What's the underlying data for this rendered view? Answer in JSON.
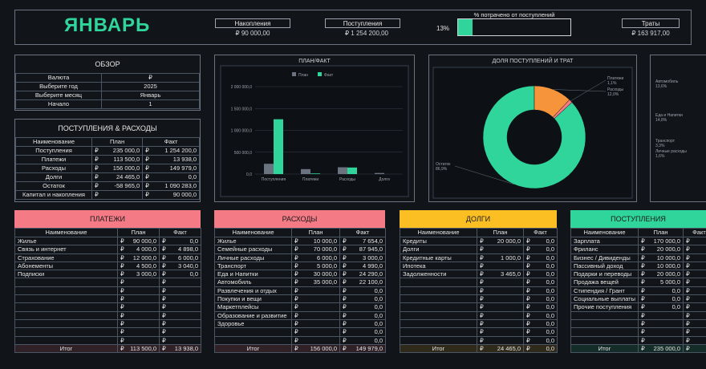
{
  "header": {
    "title": "ЯНВАРЬ",
    "savings_label": "Накопления",
    "savings_value": "₽ 90 000,00",
    "income_label": "Поступления",
    "income_value": "₽ 1 254 200,00",
    "spent_pct_label": "% потрачено от поступлений",
    "spent_pct_value": "13%",
    "spent_pct_fraction": 0.13,
    "expenses_label": "Траты",
    "expenses_value": "₽ 163 917,00"
  },
  "overview": {
    "title": "ОБЗОР",
    "rows": [
      {
        "label": "Валюта",
        "value": "₽"
      },
      {
        "label": "Выберите год",
        "value": "2025"
      },
      {
        "label": "Выберите месяц",
        "value": "Январь"
      },
      {
        "label": "Начало",
        "value": "1"
      }
    ]
  },
  "summary": {
    "title": "ПОСТУПЛЕНИЯ & РАСХОДЫ",
    "headers": [
      "Наименование",
      "План",
      "Факт"
    ],
    "rows": [
      {
        "name": "Поступления",
        "plan": "235 000,0",
        "fact": "1 254 200,0"
      },
      {
        "name": "Платежи",
        "plan": "113 500,0",
        "fact": "13 938,0"
      },
      {
        "name": "Расходы",
        "plan": "156 000,0",
        "fact": "149 979,0"
      },
      {
        "name": "Долги",
        "plan": "24 465,0",
        "fact": "0,0"
      },
      {
        "name": "Остаток",
        "plan": "-58 965,0",
        "fact": "1 090 283,0"
      },
      {
        "name": "Капитал и накопления",
        "plan": "",
        "fact": "90 000,0"
      }
    ],
    "currency": "₽"
  },
  "chart_data": [
    {
      "type": "bar",
      "title": "ПЛАН/ФАКТ",
      "categories": [
        "Поступления",
        "Платежи",
        "Расходы",
        "Долги"
      ],
      "series": [
        {
          "name": "План",
          "values": [
            235000,
            113500,
            156000,
            24465
          ],
          "color": "#6b7280"
        },
        {
          "name": "Факт",
          "values": [
            1254200,
            13938,
            149979,
            0
          ],
          "color": "#2fd59b"
        }
      ],
      "yticks": [
        "0,0",
        "500 000,0",
        "1 000 000,0",
        "1 500 000,0",
        "2 000 000,0"
      ],
      "ylim": [
        0,
        2000000
      ],
      "legend": "top"
    },
    {
      "type": "pie",
      "title": "ДОЛЯ ПОСТУПЛЕНИЙ И ТРАТ",
      "slices": [
        {
          "name": "Остаток",
          "value": 86.9,
          "label": "86,9%",
          "color": "#2fd59b"
        },
        {
          "name": "Расходы",
          "value": 12.0,
          "label": "12,0%",
          "color": "#f5943a"
        },
        {
          "name": "Платежи",
          "value": 1.1,
          "label": "1,1%",
          "color": "#f47a86"
        }
      ]
    }
  ],
  "right_partial": {
    "labels": [
      {
        "name": "Автомобиль",
        "pct": "13,6%"
      },
      {
        "name": "Еда и Напитки",
        "pct": "14,8%"
      },
      {
        "name": "Транспорт",
        "pct": "3,3%"
      },
      {
        "name": "Личные расходы",
        "pct": "1,6%"
      }
    ]
  },
  "payments": {
    "title": "ПЛАТЕЖИ",
    "color": "#f47a86",
    "headers": [
      "Наименование",
      "План",
      "Факт"
    ],
    "rows": [
      {
        "name": "Жилье",
        "plan": "90 000,0",
        "fact": "0,0"
      },
      {
        "name": "Связь и интернет",
        "plan": "4 000,0",
        "fact": "4 898,0"
      },
      {
        "name": "Страхование",
        "plan": "12 000,0",
        "fact": "6 000,0"
      },
      {
        "name": "Абонементы",
        "plan": "4 500,0",
        "fact": "3 040,0"
      },
      {
        "name": "Подписки",
        "plan": "3 000,0",
        "fact": "0,0"
      },
      {
        "name": "",
        "plan": "",
        "fact": ""
      },
      {
        "name": "",
        "plan": "",
        "fact": ""
      },
      {
        "name": "",
        "plan": "",
        "fact": ""
      },
      {
        "name": "",
        "plan": "",
        "fact": ""
      },
      {
        "name": "",
        "plan": "",
        "fact": ""
      },
      {
        "name": "",
        "plan": "",
        "fact": ""
      },
      {
        "name": "",
        "plan": "",
        "fact": ""
      },
      {
        "name": "",
        "plan": "",
        "fact": ""
      }
    ],
    "total": {
      "name": "Итог",
      "plan": "113 500,0",
      "fact": "13 938,0"
    }
  },
  "expenses": {
    "title": "РАСХОДЫ",
    "color": "#f47a86",
    "headers": [
      "Наименование",
      "План",
      "Факт"
    ],
    "rows": [
      {
        "name": "Жилье",
        "plan": "10 000,0",
        "fact": "7 654,0"
      },
      {
        "name": "Семейные расходы",
        "plan": "70 000,0",
        "fact": "87 945,0"
      },
      {
        "name": "Личные расходы",
        "plan": "6 000,0",
        "fact": "3 000,0"
      },
      {
        "name": "Транспорт",
        "plan": "5 000,0",
        "fact": "4 990,0"
      },
      {
        "name": "Еда и Напитки",
        "plan": "30 000,0",
        "fact": "24 290,0"
      },
      {
        "name": "Автомобиль",
        "plan": "35 000,0",
        "fact": "22 100,0"
      },
      {
        "name": "Развлечения и отдых",
        "plan": "",
        "fact": "0,0"
      },
      {
        "name": "Покупки и вещи",
        "plan": "",
        "fact": "0,0"
      },
      {
        "name": "Маркетплейсы",
        "plan": "",
        "fact": "0,0"
      },
      {
        "name": "Образование и развитие",
        "plan": "",
        "fact": "0,0"
      },
      {
        "name": "Здоровье",
        "plan": "",
        "fact": "0,0"
      },
      {
        "name": "",
        "plan": "",
        "fact": "0,0"
      },
      {
        "name": "",
        "plan": "",
        "fact": "0,0"
      }
    ],
    "total": {
      "name": "Итог",
      "plan": "156 000,0",
      "fact": "149 979,0"
    }
  },
  "debts": {
    "title": "ДОЛГИ",
    "color": "#fbbf24",
    "headers": [
      "Наименование",
      "План",
      "Факт"
    ],
    "rows": [
      {
        "name": "Кредиты",
        "plan": "20 000,0",
        "fact": "0,0"
      },
      {
        "name": "Долги",
        "plan": "",
        "fact": "0,0"
      },
      {
        "name": "Кредитные карты",
        "plan": "1 000,0",
        "fact": "0,0"
      },
      {
        "name": "Ипотека",
        "plan": "",
        "fact": "0,0"
      },
      {
        "name": "Задолженности",
        "plan": "3 465,0",
        "fact": "0,0"
      },
      {
        "name": "",
        "plan": "",
        "fact": "0,0"
      },
      {
        "name": "",
        "plan": "",
        "fact": "0,0"
      },
      {
        "name": "",
        "plan": "",
        "fact": "0,0"
      },
      {
        "name": "",
        "plan": "",
        "fact": "0,0"
      },
      {
        "name": "",
        "plan": "",
        "fact": "0,0"
      },
      {
        "name": "",
        "plan": "",
        "fact": "0,0"
      },
      {
        "name": "",
        "plan": "",
        "fact": "0,0"
      },
      {
        "name": "",
        "plan": "",
        "fact": "0,0"
      }
    ],
    "total": {
      "name": "Итог",
      "plan": "24 465,0",
      "fact": "0,0"
    }
  },
  "incomes": {
    "title": "ПОСТУПЛЕНИЯ",
    "color": "#2fd59b",
    "headers": [
      "Наименование",
      "План",
      "Факт"
    ],
    "rows": [
      {
        "name": "Зарплата",
        "plan": "170 000,0",
        "fact": ""
      },
      {
        "name": "Фриланс",
        "plan": "20 000,0",
        "fact": ""
      },
      {
        "name": "Бизнес / Дивиденды",
        "plan": "10 000,0",
        "fact": ""
      },
      {
        "name": "Пассивный доход",
        "plan": "10 000,0",
        "fact": ""
      },
      {
        "name": "Подарки и переводы",
        "plan": "20 000,0",
        "fact": ""
      },
      {
        "name": "Продажа вещей",
        "plan": "5 000,0",
        "fact": ""
      },
      {
        "name": "Стипендия / Грант",
        "plan": "0,0",
        "fact": ""
      },
      {
        "name": "Социальные выплаты",
        "plan": "0,0",
        "fact": ""
      },
      {
        "name": "Прочие поступления",
        "plan": "0,0",
        "fact": ""
      },
      {
        "name": "",
        "plan": "",
        "fact": ""
      },
      {
        "name": "",
        "plan": "",
        "fact": ""
      },
      {
        "name": "",
        "plan": "",
        "fact": ""
      },
      {
        "name": "",
        "plan": "",
        "fact": ""
      }
    ],
    "total": {
      "name": "Итог",
      "plan": "235 000,0",
      "fact": ""
    }
  },
  "currency": "₽"
}
